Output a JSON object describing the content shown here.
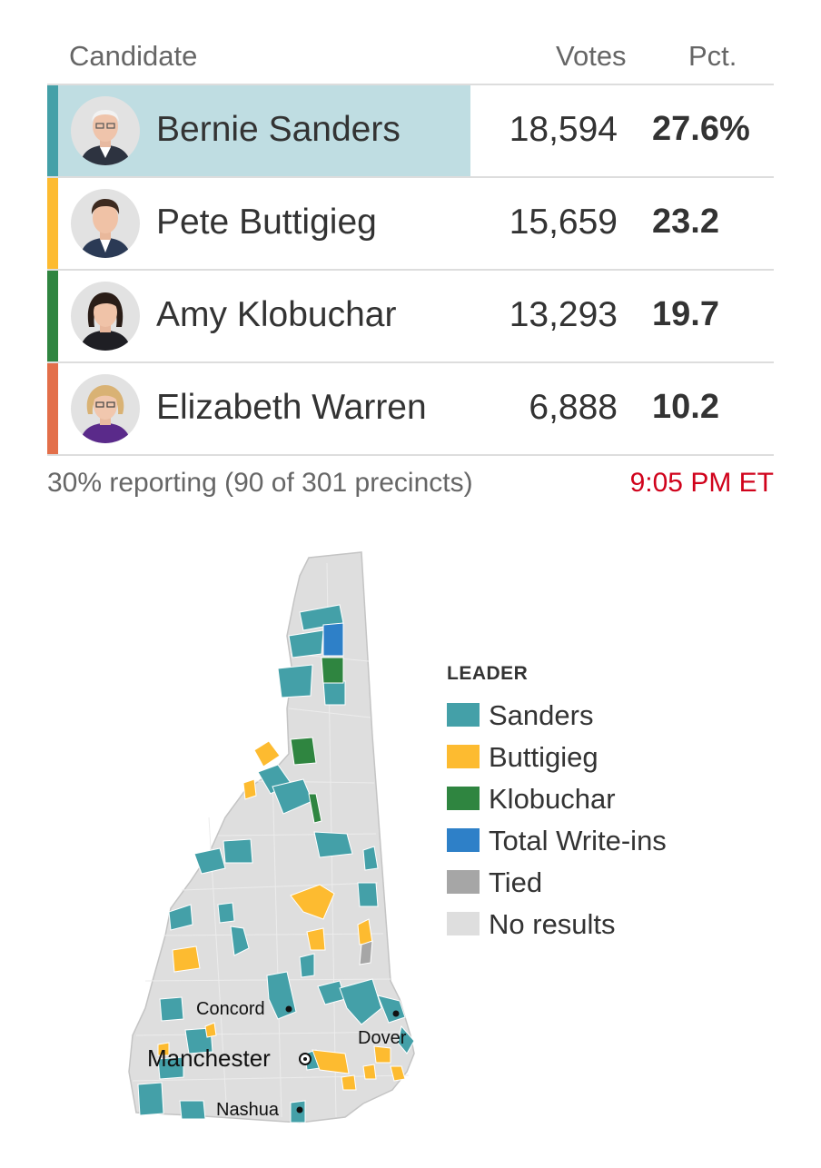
{
  "table": {
    "headers": {
      "candidate": "Candidate",
      "votes": "Votes",
      "pct": "Pct."
    },
    "rows": [
      {
        "name": "Bernie Sanders",
        "votes": "18,594",
        "pct": "27.6%",
        "color": "#44a0a8",
        "highlight": true,
        "share": 0.276
      },
      {
        "name": "Pete Buttigieg",
        "votes": "15,659",
        "pct": "23.2",
        "color": "#fdbb30",
        "highlight": false,
        "share": 0.232
      },
      {
        "name": "Amy Klobuchar",
        "votes": "13,293",
        "pct": "19.7",
        "color": "#2f8540",
        "highlight": false,
        "share": 0.197
      },
      {
        "name": "Elizabeth Warren",
        "votes": "6,888",
        "pct": "10.2",
        "color": "#e36f4a",
        "highlight": false,
        "share": 0.102
      }
    ]
  },
  "footer": {
    "reporting": "30% reporting (90 of 301 precincts)",
    "time": "9:05 PM ET"
  },
  "legend": {
    "title": "LEADER",
    "items": [
      {
        "label": "Sanders",
        "color": "#44a0a8"
      },
      {
        "label": "Buttigieg",
        "color": "#fdbb30"
      },
      {
        "label": "Klobuchar",
        "color": "#2f8540"
      },
      {
        "label": "Total Write-ins",
        "color": "#2e80c8"
      },
      {
        "label": "Tied",
        "color": "#a6a6a6"
      },
      {
        "label": "No results",
        "color": "#dedede"
      }
    ]
  },
  "map": {
    "cities": [
      {
        "name": "Concord"
      },
      {
        "name": "Manchester"
      },
      {
        "name": "Dover"
      },
      {
        "name": "Nashua"
      }
    ]
  }
}
